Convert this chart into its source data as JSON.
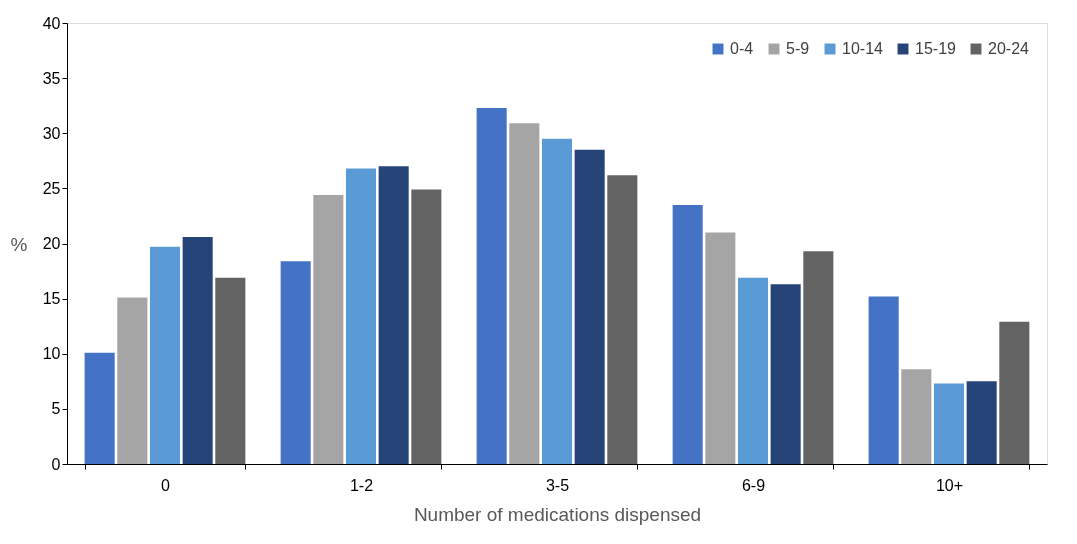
{
  "chart_data": {
    "type": "bar",
    "xlabel": "Number of medications dispensed",
    "ylabel": "%",
    "categories": [
      "0",
      "1-2",
      "3-5",
      "6-9",
      "10+"
    ],
    "series": [
      {
        "name": "0-4",
        "color": "#4472c4",
        "values": [
          10.1,
          18.4,
          32.3,
          23.5,
          15.2
        ]
      },
      {
        "name": "5-9",
        "color": "#a5a5a5",
        "values": [
          15.1,
          24.4,
          30.9,
          21.0,
          8.6
        ]
      },
      {
        "name": "10-14",
        "color": "#5b9bd5",
        "values": [
          19.7,
          26.8,
          29.5,
          16.9,
          7.3
        ]
      },
      {
        "name": "15-19",
        "color": "#264478",
        "values": [
          20.6,
          27.0,
          28.5,
          16.3,
          7.5
        ]
      },
      {
        "name": "20-24",
        "color": "#636363",
        "values": [
          16.9,
          24.9,
          26.2,
          19.3,
          12.9
        ]
      }
    ],
    "ylim": [
      0,
      40
    ],
    "yticks": [
      0,
      5,
      10,
      15,
      20,
      25,
      30,
      35,
      40
    ],
    "grid": false,
    "legend": "top right"
  }
}
